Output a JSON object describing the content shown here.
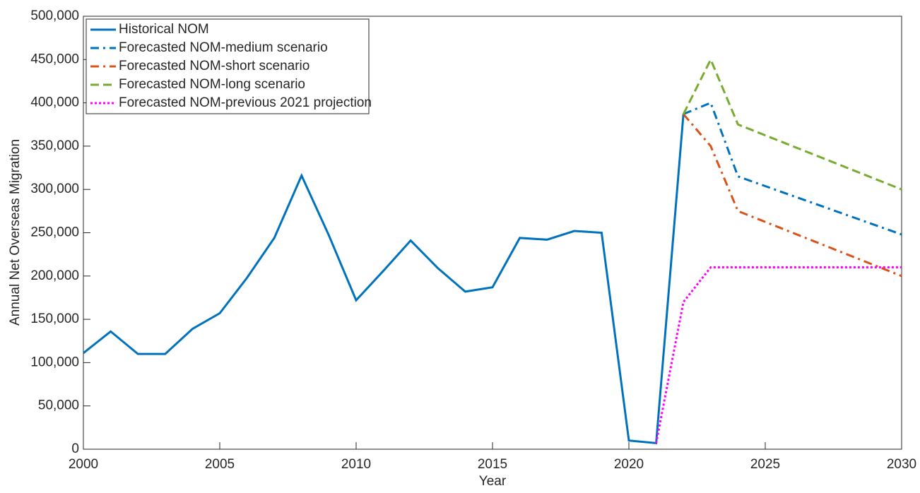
{
  "chart_data": {
    "type": "line",
    "xlabel": "Year",
    "ylabel": "Annual Net Overseas Migration",
    "xlim": [
      2000,
      2030
    ],
    "xticks": [
      2000,
      2005,
      2010,
      2015,
      2020,
      2025,
      2030
    ],
    "ylim": [
      0,
      500000
    ],
    "yticks": [
      0,
      {
        "value": 50000,
        "label": "50,000"
      },
      {
        "value": 100000,
        "label": "100,000"
      },
      {
        "value": 150000,
        "label": "150,000"
      },
      {
        "value": 200000,
        "label": "200,000"
      },
      {
        "value": 250000,
        "label": "250,000"
      },
      {
        "value": 300000,
        "label": "300,000"
      },
      {
        "value": 350000,
        "label": "350,000"
      },
      {
        "value": 400000,
        "label": "400,000"
      },
      {
        "value": 450000,
        "label": "450,000"
      },
      {
        "value": 500000,
        "label": "500,000"
      }
    ],
    "legend": "upper left",
    "series": [
      {
        "name": "Historical NOM",
        "color": "#0072BD",
        "line_style": "solid",
        "x": [
          2000,
          2001,
          2002,
          2003,
          2004,
          2005,
          2006,
          2007,
          2008,
          2009,
          2010,
          2011,
          2012,
          2013,
          2014,
          2015,
          2016,
          2017,
          2018,
          2019,
          2020,
          2021,
          2022
        ],
        "values": [
          111000,
          136000,
          110000,
          110000,
          139000,
          157000,
          198000,
          244000,
          316000,
          247000,
          172000,
          206000,
          241000,
          209000,
          182000,
          187000,
          244000,
          242000,
          252000,
          250000,
          10000,
          7000,
          387000
        ]
      },
      {
        "name": "Forecasted NOM-medium scenario",
        "color": "#0072BD",
        "line_style": "dashdot",
        "x": [
          2022,
          2023,
          2024,
          2030
        ],
        "values": [
          387000,
          400000,
          315000,
          248000
        ]
      },
      {
        "name": "Forecasted NOM-short scenario",
        "color": "#D95319",
        "line_style": "dashdot",
        "x": [
          2022,
          2023,
          2024,
          2030
        ],
        "values": [
          387000,
          350000,
          275000,
          200000
        ]
      },
      {
        "name": "Forecasted NOM-long scenario",
        "color": "#77AC30",
        "line_style": "dashed",
        "x": [
          2022,
          2023,
          2024,
          2030
        ],
        "values": [
          387000,
          450000,
          375000,
          300000
        ]
      },
      {
        "name": "Forecasted NOM-previous 2021 projection",
        "color": "#FF00FF",
        "line_style": "dotted",
        "x": [
          2021,
          2022,
          2023,
          2030
        ],
        "values": [
          7000,
          170000,
          210000,
          210000
        ]
      }
    ]
  }
}
